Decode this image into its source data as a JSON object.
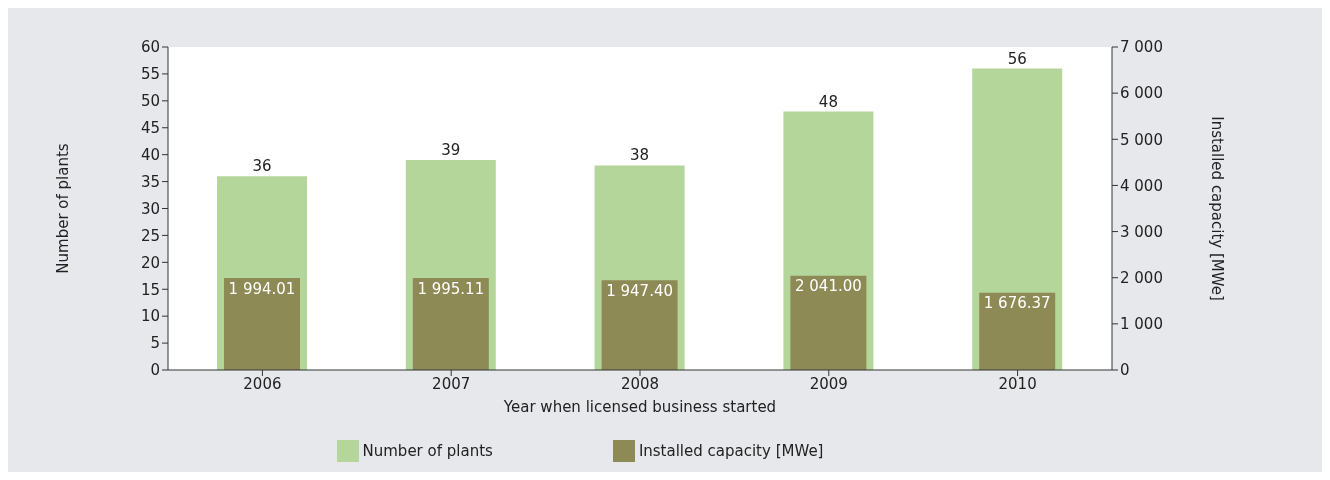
{
  "chart_data": {
    "type": "bar",
    "xlabel": "Year when licensed business started",
    "ylabel": "Number of plants",
    "y2label": "Installed capacity [MWe]",
    "categories": [
      "2006",
      "2007",
      "2008",
      "2009",
      "2010"
    ],
    "series": [
      {
        "name": "Number of plants",
        "color": "#b5d69a",
        "values": [
          36,
          39,
          38,
          48,
          56
        ],
        "value_labels": [
          "36",
          "39",
          "38",
          "48",
          "56"
        ]
      },
      {
        "name": "Installed capacity [MWe]",
        "color": "#8e8a55",
        "axis": "y2",
        "values": [
          1994.01,
          1995.11,
          1947.4,
          2041.0,
          1676.37
        ],
        "value_labels": [
          "1 994.01",
          "1 995.11",
          "1 947.40",
          "2 041.00",
          "1 676.37"
        ]
      }
    ],
    "ylim": [
      0,
      60
    ],
    "yticks": [
      0,
      5,
      10,
      15,
      20,
      25,
      30,
      35,
      40,
      45,
      50,
      55,
      60
    ],
    "y2lim": [
      0,
      7000
    ],
    "y2ticks": [
      0,
      {
        "value": 1000,
        "label": "1 000"
      },
      {
        "value": 2000,
        "label": "2 000"
      },
      {
        "value": 3000,
        "label": "3 000"
      },
      {
        "value": 4000,
        "label": "4 000"
      },
      {
        "value": 5000,
        "label": "5 000"
      },
      {
        "value": 6000,
        "label": "6 000"
      },
      {
        "value": 7000,
        "label": "7 000"
      }
    ],
    "legend": "bottom"
  }
}
